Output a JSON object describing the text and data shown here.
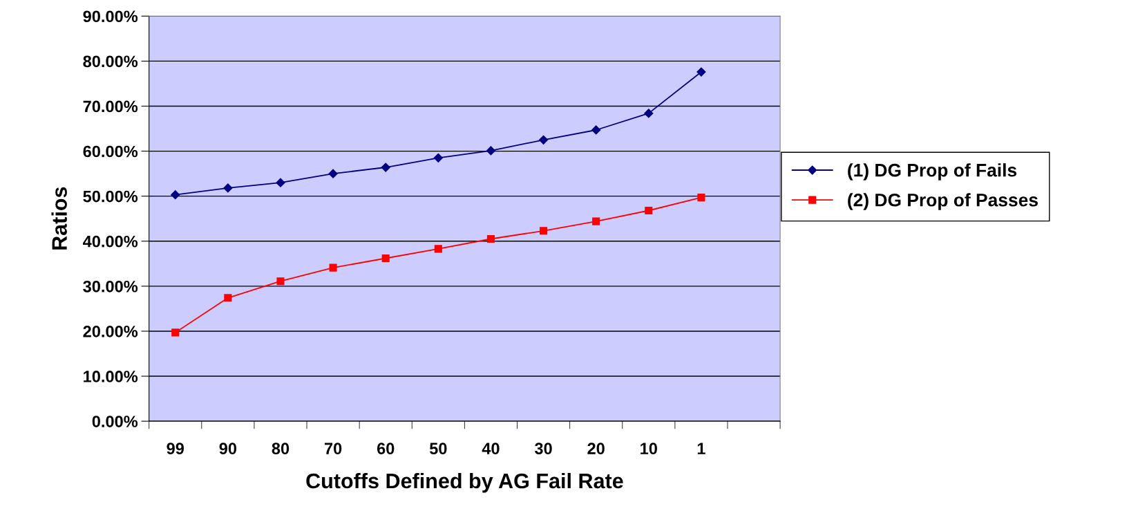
{
  "chart_data": {
    "type": "line",
    "xlabel": "Cutoffs Defined by AG Fail Rate",
    "ylabel": "Ratios",
    "categories": [
      "99",
      "90",
      "80",
      "70",
      "60",
      "50",
      "40",
      "30",
      "20",
      "10",
      "1",
      null
    ],
    "series": [
      {
        "name": "(1) DG Prop of Fails",
        "color": "#000080",
        "marker": "diamond",
        "values": [
          50.3,
          51.8,
          53.0,
          55.0,
          56.4,
          58.5,
          60.1,
          62.5,
          64.7,
          68.4,
          77.6,
          null
        ]
      },
      {
        "name": "(2) DG Prop of Passes",
        "color": "#ff0000",
        "marker": "square",
        "values": [
          19.7,
          27.4,
          31.1,
          34.1,
          36.2,
          38.3,
          40.5,
          42.3,
          44.4,
          46.8,
          49.7,
          null
        ]
      }
    ],
    "ylim": [
      0,
      90
    ],
    "yticks": [
      {
        "value": 0,
        "label": "0.00%"
      },
      {
        "value": 10,
        "label": "10.00%"
      },
      {
        "value": 20,
        "label": "20.00%"
      },
      {
        "value": 30,
        "label": "30.00%"
      },
      {
        "value": 40,
        "label": "40.00%"
      },
      {
        "value": 50,
        "label": "50.00%"
      },
      {
        "value": 60,
        "label": "60.00%"
      },
      {
        "value": 70,
        "label": "70.00%"
      },
      {
        "value": 80,
        "label": "80.00%"
      },
      {
        "value": 90,
        "label": "90.00%"
      }
    ],
    "grid": "y",
    "legend": "right"
  }
}
